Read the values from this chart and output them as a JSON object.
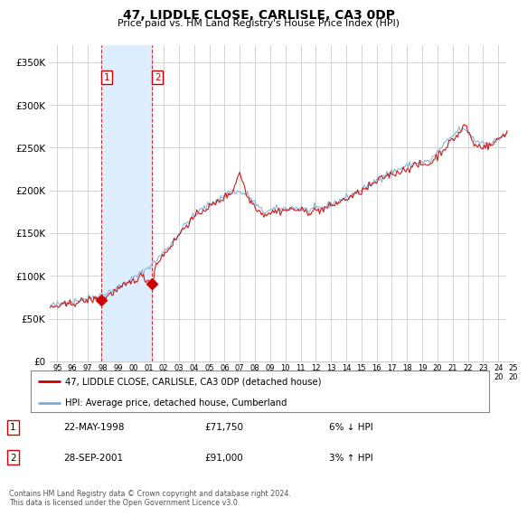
{
  "title": "47, LIDDLE CLOSE, CARLISLE, CA3 0DP",
  "subtitle": "Price paid vs. HM Land Registry's House Price Index (HPI)",
  "legend_line1": "47, LIDDLE CLOSE, CARLISLE, CA3 0DP (detached house)",
  "legend_line2": "HPI: Average price, detached house, Cumberland",
  "transaction1_label": "1",
  "transaction1_date": "22-MAY-1998",
  "transaction1_price": "£71,750",
  "transaction1_hpi": "6% ↓ HPI",
  "transaction2_label": "2",
  "transaction2_date": "28-SEP-2001",
  "transaction2_price": "£91,000",
  "transaction2_hpi": "3% ↑ HPI",
  "footnote": "Contains HM Land Registry data © Crown copyright and database right 2024.\nThis data is licensed under the Open Government Licence v3.0.",
  "red_line_color": "#cc0000",
  "blue_line_color": "#7bafd4",
  "background_color": "#ffffff",
  "grid_color": "#cccccc",
  "shade_color": "#ddeeff",
  "ylim": [
    0,
    370000
  ],
  "yticks": [
    0,
    50000,
    100000,
    150000,
    200000,
    250000,
    300000,
    350000
  ],
  "ytick_labels": [
    "£0",
    "£50K",
    "£100K",
    "£150K",
    "£200K",
    "£250K",
    "£300K",
    "£350K"
  ],
  "transaction1_x": 1998.38,
  "transaction2_x": 2001.74,
  "transaction1_y": 71750,
  "transaction2_y": 91000,
  "x_min": 1995.0,
  "x_max": 2025.5
}
